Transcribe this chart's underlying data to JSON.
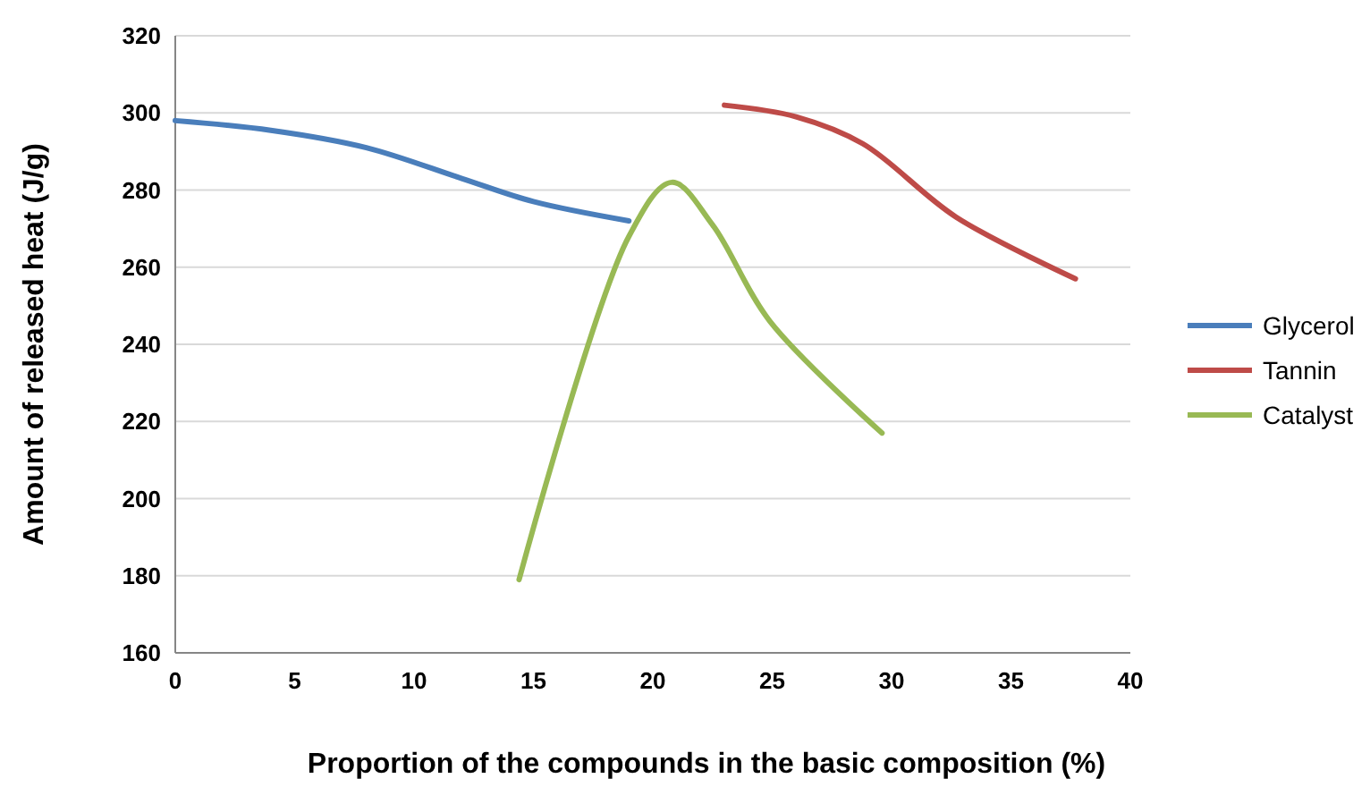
{
  "chart_data": {
    "type": "line",
    "xlabel": "Proportion of the compounds in the basic composition (%)",
    "ylabel": "Amount of released heat (J/g)",
    "xlim": [
      0,
      40
    ],
    "xticks": [
      0,
      5,
      10,
      15,
      20,
      25,
      30,
      35,
      40
    ],
    "ylim": [
      160,
      320
    ],
    "yticks": [
      160,
      180,
      200,
      220,
      240,
      260,
      280,
      300,
      320
    ],
    "grid": "y",
    "legend": "right",
    "marker": "none",
    "series": [
      {
        "name": "Glycerol",
        "color": "#4a7ebb",
        "x": [
          0,
          4,
          8,
          12,
          15,
          19
        ],
        "values": [
          298,
          295.5,
          291,
          283,
          277,
          272
        ]
      },
      {
        "name": "Tannin",
        "color": "#be4b48",
        "x": [
          23,
          26,
          28.8,
          32.7,
          37.7
        ],
        "values": [
          302,
          299,
          292,
          273,
          257
        ]
      },
      {
        "name": "Catalyst",
        "color": "#98b954",
        "x": [
          14.4,
          19,
          20.8,
          22.5,
          24.9,
          29.6
        ],
        "values": [
          179,
          268,
          282,
          271,
          246,
          217
        ]
      }
    ]
  }
}
